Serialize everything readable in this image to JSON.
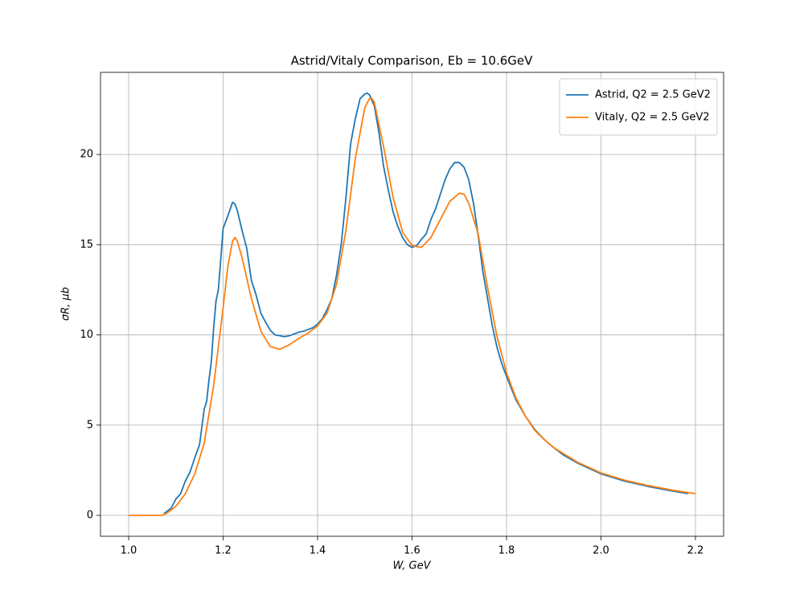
{
  "chart_data": {
    "type": "line",
    "title": "Astrid/Vitaly Comparison, Eb = 10.6GeV",
    "x_label": "W, GeV",
    "y_label": "σR, μb",
    "xlim": [
      0.9404,
      2.2596
    ],
    "ylim": [
      -1.16,
      24.55
    ],
    "xticks": [
      {
        "value": 1,
        "label": "1.0"
      },
      1.2,
      1.4,
      1.6,
      1.8,
      {
        "value": 2,
        "label": "2.0"
      },
      2.2
    ],
    "yticks": [
      0,
      5,
      10,
      15,
      20
    ],
    "grid": true,
    "legend": "upper right",
    "series": [
      {
        "name": "Astrid, Q2 = 2.5 GeV2",
        "color": "#1f77b4",
        "x": [
          1.075,
          1.09,
          1.1,
          1.11,
          1.12,
          1.13,
          1.14,
          1.15,
          1.16,
          1.165,
          1.17,
          1.175,
          1.18,
          1.185,
          1.19,
          1.2,
          1.21,
          1.22,
          1.225,
          1.23,
          1.24,
          1.25,
          1.26,
          1.27,
          1.28,
          1.29,
          1.3,
          1.31,
          1.32,
          1.33,
          1.34,
          1.35,
          1.36,
          1.37,
          1.38,
          1.39,
          1.4,
          1.41,
          1.42,
          1.43,
          1.44,
          1.45,
          1.46,
          1.47,
          1.48,
          1.49,
          1.5,
          1.505,
          1.51,
          1.52,
          1.53,
          1.54,
          1.55,
          1.56,
          1.57,
          1.58,
          1.59,
          1.6,
          1.61,
          1.62,
          1.63,
          1.64,
          1.65,
          1.66,
          1.67,
          1.68,
          1.69,
          1.7,
          1.71,
          1.72,
          1.73,
          1.74,
          1.75,
          1.76,
          1.77,
          1.78,
          1.79,
          1.8,
          1.82,
          1.84,
          1.86,
          1.88,
          1.9,
          1.92,
          1.95,
          2.0,
          2.05,
          2.1,
          2.15,
          2.185
        ],
        "values": [
          0.1,
          0.4,
          0.9,
          1.2,
          1.9,
          2.4,
          3.2,
          3.9,
          5.9,
          6.3,
          7.5,
          8.5,
          10.4,
          11.9,
          12.5,
          15.9,
          16.6,
          17.35,
          17.25,
          16.9,
          15.8,
          14.8,
          13.0,
          12.2,
          11.2,
          10.7,
          10.25,
          10.0,
          9.95,
          9.9,
          9.95,
          10.05,
          10.15,
          10.2,
          10.3,
          10.4,
          10.6,
          10.9,
          11.4,
          12.0,
          13.3,
          15.0,
          17.6,
          20.6,
          22.0,
          23.1,
          23.35,
          23.4,
          23.3,
          22.7,
          21.2,
          19.3,
          18.0,
          16.8,
          16.0,
          15.4,
          15.0,
          14.85,
          14.95,
          15.3,
          15.6,
          16.4,
          17.0,
          17.8,
          18.6,
          19.2,
          19.55,
          19.55,
          19.3,
          18.6,
          17.3,
          15.5,
          13.5,
          12.0,
          10.5,
          9.3,
          8.4,
          7.7,
          6.4,
          5.5,
          4.75,
          4.2,
          3.75,
          3.35,
          2.9,
          2.3,
          1.9,
          1.6,
          1.35,
          1.2
        ]
      },
      {
        "name": "Vitaly, Q2 = 2.5 GeV2",
        "color": "#ff7f0e",
        "x": [
          1.0,
          1.07,
          1.08,
          1.1,
          1.12,
          1.14,
          1.16,
          1.18,
          1.2,
          1.21,
          1.22,
          1.225,
          1.23,
          1.24,
          1.26,
          1.28,
          1.3,
          1.32,
          1.34,
          1.36,
          1.38,
          1.4,
          1.42,
          1.44,
          1.46,
          1.48,
          1.5,
          1.51,
          1.515,
          1.52,
          1.54,
          1.56,
          1.58,
          1.6,
          1.62,
          1.64,
          1.66,
          1.68,
          1.7,
          1.71,
          1.72,
          1.74,
          1.76,
          1.78,
          1.8,
          1.82,
          1.84,
          1.86,
          1.88,
          1.9,
          1.95,
          2.0,
          2.05,
          2.1,
          2.15,
          2.2
        ],
        "values": [
          0,
          0,
          0.1,
          0.5,
          1.2,
          2.3,
          4.0,
          7.2,
          11.5,
          13.8,
          15.2,
          15.4,
          15.2,
          14.3,
          12.0,
          10.2,
          9.35,
          9.2,
          9.45,
          9.8,
          10.1,
          10.5,
          11.2,
          12.8,
          15.8,
          19.8,
          22.6,
          23.1,
          23.1,
          22.9,
          20.4,
          17.6,
          15.7,
          14.95,
          14.85,
          15.4,
          16.4,
          17.4,
          17.85,
          17.8,
          17.3,
          15.6,
          12.6,
          9.9,
          7.9,
          6.5,
          5.5,
          4.7,
          4.2,
          3.75,
          2.95,
          2.35,
          1.95,
          1.65,
          1.4,
          1.2
        ]
      }
    ]
  }
}
